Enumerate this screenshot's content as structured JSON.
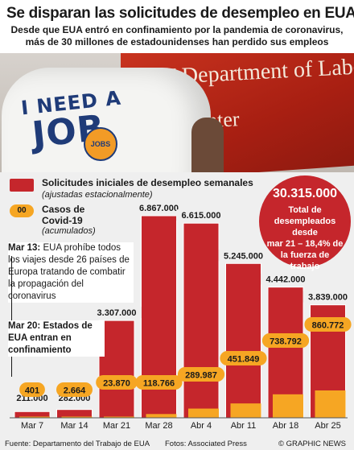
{
  "title": "Se disparan las solicitudes de desempleo en EUA",
  "subtitle_line1": "Desde que EUA entró en confinamiento por la pandemia de coronavirus,",
  "subtitle_line2": "más de 30 millones de estadounidenses han perdido sus empleos",
  "photo": {
    "wall_line1": "YT Department of Labor",
    "wall_line2": "rce Center",
    "shirt_line1": "I NEED A",
    "shirt_line2": "JOB",
    "shirt_badge": "JOBS"
  },
  "legend": {
    "red_label": "Solicitudes iniciales de desempleo semanales",
    "red_note": "(ajustadas estacionalmente)",
    "orange_sample": "00",
    "orange_label_line1": "Casos de",
    "orange_label_line2": "Covid-19",
    "orange_note": "(acumulados)"
  },
  "total_box": {
    "number": "30.315.000",
    "line1": "Total de",
    "line2": "desempleados desde",
    "line3": "mar 21 – 18,4% de",
    "line4": "la fuerza de",
    "line5": "trabajo"
  },
  "notes": {
    "mar13_bold": "Mar 13:",
    "mar13_text": " EUA prohíbe todos los viajes desde 26 países de Europa tratando de combatir la propagación del coronavirus",
    "mar20_bold": "Mar 20: Estados de EUA entran en confinamiento"
  },
  "colors": {
    "claims": "#c5262c",
    "covid": "#f6a623",
    "bar_edge": "#ffffff"
  },
  "footer": {
    "source": "Fuente: Departamento del Trabajo de EUA",
    "photos": "Fotos: Associated Press",
    "brand": "© GRAPHIC NEWS"
  },
  "chart_data": {
    "type": "bar",
    "title": "Se disparan las solicitudes de desempleo en EUA",
    "categories": [
      "Mar 7",
      "Mar 14",
      "Mar 21",
      "Mar 28",
      "Abr 4",
      "Abr 11",
      "Abr 18",
      "Abr 25"
    ],
    "series": [
      {
        "name": "Solicitudes iniciales de desempleo semanales",
        "values": [
          211000,
          282000,
          3307000,
          6867000,
          6615000,
          5245000,
          4442000,
          3839000
        ],
        "labels": [
          "211.000",
          "282.000",
          "3.307.000",
          "6.867.000",
          "6.615.000",
          "5.245.000",
          "4.442.000",
          "3.839.000"
        ]
      },
      {
        "name": "Casos de Covid-19",
        "values": [
          401,
          2664,
          23870,
          118766,
          289987,
          451849,
          738792,
          860772
        ],
        "labels": [
          "401",
          "2.664",
          "23.870",
          "118.766",
          "289.987",
          "451.849",
          "738.792",
          "860.772"
        ]
      }
    ],
    "ylim": [
      0,
      6867000
    ],
    "grid": false,
    "legend_position": "top-left"
  }
}
